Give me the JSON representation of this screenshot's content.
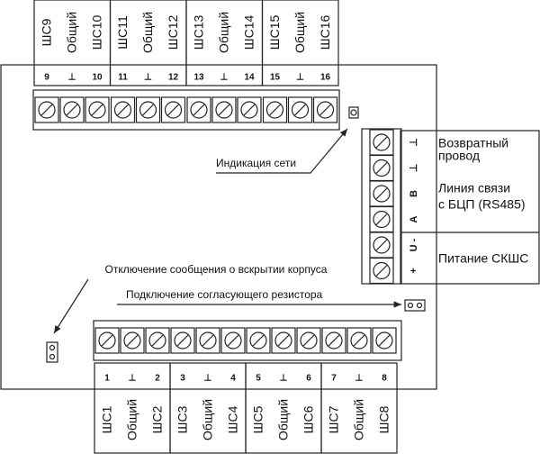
{
  "top_groups": [
    {
      "labels": [
        "ШС9",
        "Общий",
        "ШС10"
      ],
      "numbers": [
        "9",
        "⊥",
        "10"
      ]
    },
    {
      "labels": [
        "ШС11",
        "Общий",
        "ШС12"
      ],
      "numbers": [
        "11",
        "⊥",
        "12"
      ]
    },
    {
      "labels": [
        "ШС13",
        "Общий",
        "ШС14"
      ],
      "numbers": [
        "13",
        "⊥",
        "14"
      ]
    },
    {
      "labels": [
        "ШС15",
        "Общий",
        "ШС16"
      ],
      "numbers": [
        "15",
        "⊥",
        "16"
      ]
    }
  ],
  "bottom_groups": [
    {
      "labels": [
        "ШС1",
        "Общий",
        "ШС2"
      ],
      "numbers": [
        "1",
        "⊥",
        "2"
      ]
    },
    {
      "labels": [
        "ШС3",
        "Общий",
        "ШС4"
      ],
      "numbers": [
        "3",
        "⊥",
        "4"
      ]
    },
    {
      "labels": [
        "ШС5",
        "Общий",
        "ШС6"
      ],
      "numbers": [
        "5",
        "⊥",
        "6"
      ]
    },
    {
      "labels": [
        "ШС7",
        "Общий",
        "ШС8"
      ],
      "numbers": [
        "7",
        "⊥",
        "8"
      ]
    }
  ],
  "right_terminals": [
    "⊥",
    "⊥",
    "B",
    "A",
    "U -",
    "+"
  ],
  "side_labels": [
    {
      "lines": [
        "Возвратный",
        "провод"
      ]
    },
    {
      "lines": [
        "Линия связи",
        "с БЦП (RS485)"
      ]
    },
    {
      "lines": [
        "Питание СКШС"
      ]
    }
  ],
  "annotations": {
    "network": "Индикация сети",
    "tamper": "Отключение сообщения о вскрытии корпуса",
    "resistor": "Подключение согласующего резистора"
  }
}
